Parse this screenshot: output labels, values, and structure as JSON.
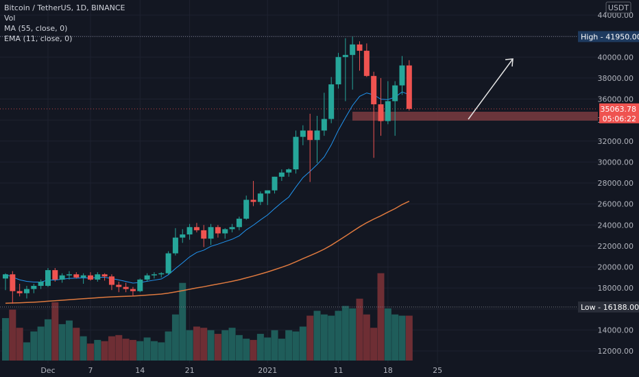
{
  "legend": {
    "title": "Bitcoin / TetherUS, 1D, BINANCE",
    "vol": "Vol",
    "ma": "MA (55, close, 0)",
    "ema": "EMA (11, close, 0)"
  },
  "currency_label": "USDT",
  "price_tag": {
    "value": "35063.78",
    "countdown": "05:06:22"
  },
  "high_tag": {
    "label": "High",
    "value": "41950.00"
  },
  "low_tag": {
    "label": "Low",
    "value": "16188.00"
  },
  "colors": {
    "up": "#26a69a",
    "down": "#ef5350",
    "up_vol": "#1f5d5a",
    "down_vol": "#6e2e34",
    "ma": "#e07a3f",
    "ema": "#2196f3",
    "zone": "#7a3b3f",
    "arrow": "#e6e6e6"
  },
  "chart_data": {
    "type": "candlestick",
    "ylim": [
      11000,
      44500
    ],
    "y_ticks": [
      "12000.00",
      "14000.00",
      "16000.00",
      "18000.00",
      "20000.00",
      "22000.00",
      "24000.00",
      "26000.00",
      "28000.00",
      "30000.00",
      "32000.00",
      "34000.00",
      "36000.00",
      "38000.00",
      "40000.00",
      "42000.00",
      "44000.00"
    ],
    "x_ticks": [
      {
        "label": "Dec",
        "day": 6
      },
      {
        "label": "7",
        "day": 12
      },
      {
        "label": "14",
        "day": 19
      },
      {
        "label": "21",
        "day": 26
      },
      {
        "label": "2021",
        "day": 37
      },
      {
        "label": "11",
        "day": 47
      },
      {
        "label": "18",
        "day": 54
      },
      {
        "label": "25",
        "day": 61
      }
    ],
    "candles": [
      {
        "o": 18900,
        "h": 19400,
        "l": 17800,
        "c": 19300
      },
      {
        "o": 19300,
        "h": 19600,
        "l": 16500,
        "c": 17700
      },
      {
        "o": 17700,
        "h": 18400,
        "l": 17200,
        "c": 17500
      },
      {
        "o": 17500,
        "h": 18200,
        "l": 17000,
        "c": 17900
      },
      {
        "o": 17900,
        "h": 18400,
        "l": 17500,
        "c": 18200
      },
      {
        "o": 18200,
        "h": 18800,
        "l": 17900,
        "c": 18600
      },
      {
        "o": 18200,
        "h": 19900,
        "l": 18100,
        "c": 19700
      },
      {
        "o": 19700,
        "h": 19900,
        "l": 18600,
        "c": 18800
      },
      {
        "o": 18800,
        "h": 19400,
        "l": 18500,
        "c": 19200
      },
      {
        "o": 19200,
        "h": 19600,
        "l": 18800,
        "c": 19300
      },
      {
        "o": 19300,
        "h": 19500,
        "l": 18900,
        "c": 19000
      },
      {
        "o": 19000,
        "h": 19400,
        "l": 18400,
        "c": 19200
      },
      {
        "o": 19200,
        "h": 19500,
        "l": 18700,
        "c": 18800
      },
      {
        "o": 18800,
        "h": 19500,
        "l": 18600,
        "c": 19300
      },
      {
        "o": 19300,
        "h": 19400,
        "l": 18700,
        "c": 19100
      },
      {
        "o": 19100,
        "h": 19300,
        "l": 17800,
        "c": 18300
      },
      {
        "o": 18300,
        "h": 18600,
        "l": 17600,
        "c": 18100
      },
      {
        "o": 18100,
        "h": 18500,
        "l": 17600,
        "c": 17900
      },
      {
        "o": 17900,
        "h": 18100,
        "l": 17200,
        "c": 17700
      },
      {
        "o": 17700,
        "h": 18900,
        "l": 17600,
        "c": 18800
      },
      {
        "o": 18800,
        "h": 19400,
        "l": 18600,
        "c": 19200
      },
      {
        "o": 19200,
        "h": 19500,
        "l": 18900,
        "c": 19300
      },
      {
        "o": 19300,
        "h": 19500,
        "l": 19000,
        "c": 19400
      },
      {
        "o": 19400,
        "h": 21500,
        "l": 19300,
        "c": 21300
      },
      {
        "o": 21300,
        "h": 23700,
        "l": 21100,
        "c": 22800
      },
      {
        "o": 22800,
        "h": 23600,
        "l": 22300,
        "c": 23100
      },
      {
        "o": 23100,
        "h": 24100,
        "l": 22600,
        "c": 23800
      },
      {
        "o": 23800,
        "h": 24200,
        "l": 23300,
        "c": 23500
      },
      {
        "o": 23500,
        "h": 24000,
        "l": 21900,
        "c": 22700
      },
      {
        "o": 22700,
        "h": 24100,
        "l": 22100,
        "c": 23800
      },
      {
        "o": 23800,
        "h": 24000,
        "l": 22800,
        "c": 23200
      },
      {
        "o": 23200,
        "h": 23700,
        "l": 22700,
        "c": 23600
      },
      {
        "o": 23600,
        "h": 24100,
        "l": 23300,
        "c": 23800
      },
      {
        "o": 23800,
        "h": 24800,
        "l": 23500,
        "c": 24600
      },
      {
        "o": 24600,
        "h": 26800,
        "l": 24500,
        "c": 26400
      },
      {
        "o": 26400,
        "h": 28200,
        "l": 25800,
        "c": 26200
      },
      {
        "o": 26200,
        "h": 27200,
        "l": 25900,
        "c": 27000
      },
      {
        "o": 27000,
        "h": 27300,
        "l": 25900,
        "c": 27300
      },
      {
        "o": 27300,
        "h": 28600,
        "l": 27000,
        "c": 28600
      },
      {
        "o": 28600,
        "h": 29300,
        "l": 28200,
        "c": 29000
      },
      {
        "o": 29000,
        "h": 29400,
        "l": 28600,
        "c": 29300
      },
      {
        "o": 29300,
        "h": 33000,
        "l": 28900,
        "c": 32400
      },
      {
        "o": 32400,
        "h": 33500,
        "l": 31600,
        "c": 33000
      },
      {
        "o": 33000,
        "h": 34600,
        "l": 28100,
        "c": 32100
      },
      {
        "o": 32100,
        "h": 34400,
        "l": 29900,
        "c": 33000
      },
      {
        "o": 33000,
        "h": 36600,
        "l": 32500,
        "c": 34100
      },
      {
        "o": 34100,
        "h": 38100,
        "l": 33700,
        "c": 37400
      },
      {
        "o": 37400,
        "h": 40400,
        "l": 37000,
        "c": 40000
      },
      {
        "o": 40000,
        "h": 41800,
        "l": 35800,
        "c": 40200
      },
      {
        "o": 40200,
        "h": 41950,
        "l": 36900,
        "c": 41200
      },
      {
        "o": 41200,
        "h": 41500,
        "l": 38700,
        "c": 40600
      },
      {
        "o": 40600,
        "h": 41300,
        "l": 38100,
        "c": 38200
      },
      {
        "o": 38200,
        "h": 38600,
        "l": 30400,
        "c": 35500
      },
      {
        "o": 35500,
        "h": 38000,
        "l": 32500,
        "c": 33900
      },
      {
        "o": 33900,
        "h": 37700,
        "l": 33600,
        "c": 35800
      },
      {
        "o": 35800,
        "h": 37700,
        "l": 32500,
        "c": 37300
      },
      {
        "o": 37300,
        "h": 40100,
        "l": 36400,
        "c": 39200
      },
      {
        "o": 39200,
        "h": 39700,
        "l": 34900,
        "c": 35063.78
      }
    ],
    "volume": [
      35,
      42,
      27,
      15,
      24,
      28,
      34,
      48,
      30,
      33,
      27,
      20,
      14,
      17,
      16,
      20,
      21,
      18,
      17,
      16,
      19,
      16,
      15,
      24,
      38,
      64,
      25,
      28,
      27,
      25,
      22,
      25,
      27,
      21,
      18,
      17,
      22,
      19,
      25,
      18,
      25,
      24,
      28,
      37,
      41,
      38,
      37,
      41,
      45,
      43,
      51,
      38,
      27,
      72,
      43,
      38,
      37,
      37
    ]
  }
}
